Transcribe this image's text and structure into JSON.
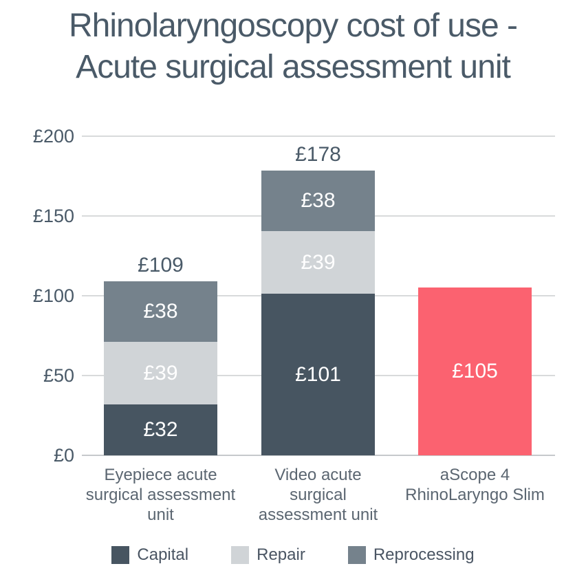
{
  "title": {
    "text": "Rhinolaryngoscopy cost of use -\nAcute surgical assessment unit"
  },
  "chart_data": {
    "type": "bar",
    "stacked": true,
    "title": "Rhinolaryngoscopy cost of use - Acute surgical assessment unit",
    "currency": "GBP",
    "categories": [
      "Eyepiece acute\nsurgical assessment\nunit",
      "Video acute\nsurgical\nassessment unit",
      "aScope 4\nRhinoLaryngo Slim"
    ],
    "series": [
      {
        "name": "Capital",
        "color": "#475561",
        "values": [
          32,
          101,
          0
        ],
        "value_labels": [
          "£32",
          "£101",
          null
        ]
      },
      {
        "name": "Repair",
        "color": "#d0d4d7",
        "values": [
          39,
          39,
          0
        ],
        "value_labels": [
          "£39",
          "£39",
          null
        ]
      },
      {
        "name": "Reprocessing",
        "color": "#75828c",
        "values": [
          38,
          38,
          0
        ],
        "value_labels": [
          "£38",
          "£38",
          null
        ]
      },
      {
        "name": "aScope 4 RhinoLaryngo Slim",
        "color": "#fb6270",
        "values": [
          0,
          0,
          105
        ],
        "value_labels": [
          null,
          null,
          "£105"
        ]
      }
    ],
    "totals": [
      109,
      178,
      105
    ],
    "total_labels": [
      "£109",
      "£178",
      null
    ],
    "ylim": [
      0,
      200
    ],
    "ytick_values": [
      0,
      50,
      100,
      150,
      200
    ],
    "yticks": [
      "£0",
      "£50",
      "£100",
      "£150",
      "£200"
    ],
    "grid": true,
    "legend_position": "bottom"
  },
  "legend": {
    "items": [
      {
        "label": "Capital",
        "color": "#475561"
      },
      {
        "label": "Repair",
        "color": "#d0d4d7"
      },
      {
        "label": "Reprocessing",
        "color": "#75828c"
      }
    ]
  },
  "colors": {
    "title_text": "#4a5a68",
    "axis_text": "#4a5a68",
    "category_text": "#5b6671",
    "value_text": "#ffffff",
    "gridline": "#d8dadb",
    "axis_line": "#c6c9cb",
    "background": "#ffffff",
    "accent_pink": "#fb6270"
  }
}
